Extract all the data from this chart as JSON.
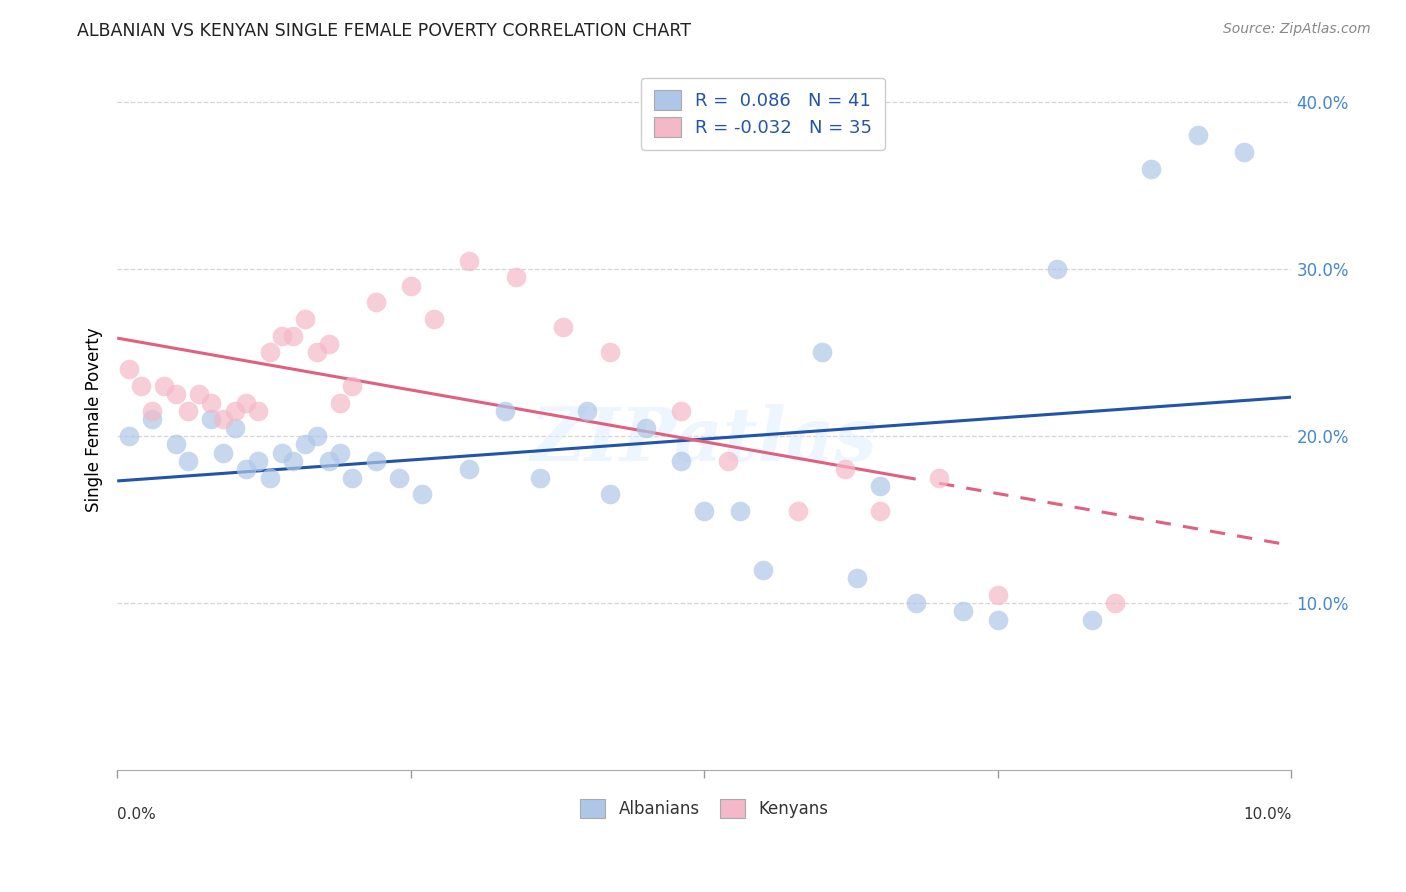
{
  "title": "ALBANIAN VS KENYAN SINGLE FEMALE POVERTY CORRELATION CHART",
  "source": "Source: ZipAtlas.com",
  "ylabel": "Single Female Poverty",
  "xlim": [
    0.0,
    0.1
  ],
  "ylim": [
    0.0,
    0.42
  ],
  "yticks": [
    0.1,
    0.2,
    0.3,
    0.4
  ],
  "ytick_labels": [
    "10.0%",
    "20.0%",
    "30.0%",
    "40.0%"
  ],
  "legend_entries": [
    {
      "label": "R =  0.086   N = 41",
      "color": "#aec6e8"
    },
    {
      "label": "R = -0.032   N = 35",
      "color": "#f4b8c8"
    }
  ],
  "albanian_color": "#aec6e8",
  "kenyan_color": "#f4b8c8",
  "trendline_albanian_color": "#2255aa",
  "trendline_kenyan_color": "#e06080",
  "watermark": "ZIPatlas",
  "albanian_x": [
    0.001,
    0.003,
    0.005,
    0.006,
    0.008,
    0.009,
    0.01,
    0.011,
    0.012,
    0.013,
    0.014,
    0.015,
    0.016,
    0.017,
    0.018,
    0.019,
    0.02,
    0.022,
    0.024,
    0.026,
    0.03,
    0.033,
    0.036,
    0.04,
    0.042,
    0.045,
    0.048,
    0.05,
    0.053,
    0.055,
    0.06,
    0.063,
    0.065,
    0.068,
    0.072,
    0.075,
    0.08,
    0.083,
    0.088,
    0.092,
    0.096
  ],
  "albanian_y": [
    0.2,
    0.21,
    0.195,
    0.185,
    0.21,
    0.19,
    0.205,
    0.18,
    0.185,
    0.175,
    0.19,
    0.185,
    0.195,
    0.2,
    0.185,
    0.19,
    0.175,
    0.185,
    0.175,
    0.165,
    0.18,
    0.215,
    0.175,
    0.215,
    0.165,
    0.205,
    0.185,
    0.155,
    0.155,
    0.12,
    0.25,
    0.115,
    0.17,
    0.1,
    0.095,
    0.09,
    0.3,
    0.09,
    0.36,
    0.38,
    0.37
  ],
  "kenyan_x": [
    0.001,
    0.002,
    0.003,
    0.004,
    0.005,
    0.006,
    0.007,
    0.008,
    0.009,
    0.01,
    0.011,
    0.012,
    0.013,
    0.014,
    0.015,
    0.016,
    0.017,
    0.018,
    0.019,
    0.02,
    0.022,
    0.025,
    0.027,
    0.03,
    0.034,
    0.038,
    0.042,
    0.048,
    0.052,
    0.058,
    0.062,
    0.065,
    0.07,
    0.075,
    0.085
  ],
  "kenyan_y": [
    0.24,
    0.23,
    0.215,
    0.23,
    0.225,
    0.215,
    0.225,
    0.22,
    0.21,
    0.215,
    0.22,
    0.215,
    0.25,
    0.26,
    0.26,
    0.27,
    0.25,
    0.255,
    0.22,
    0.23,
    0.28,
    0.29,
    0.27,
    0.305,
    0.295,
    0.265,
    0.25,
    0.215,
    0.185,
    0.155,
    0.18,
    0.155,
    0.175,
    0.105,
    0.1
  ],
  "trendline_solid_end": 0.068,
  "trendline_dashed_start": 0.07
}
